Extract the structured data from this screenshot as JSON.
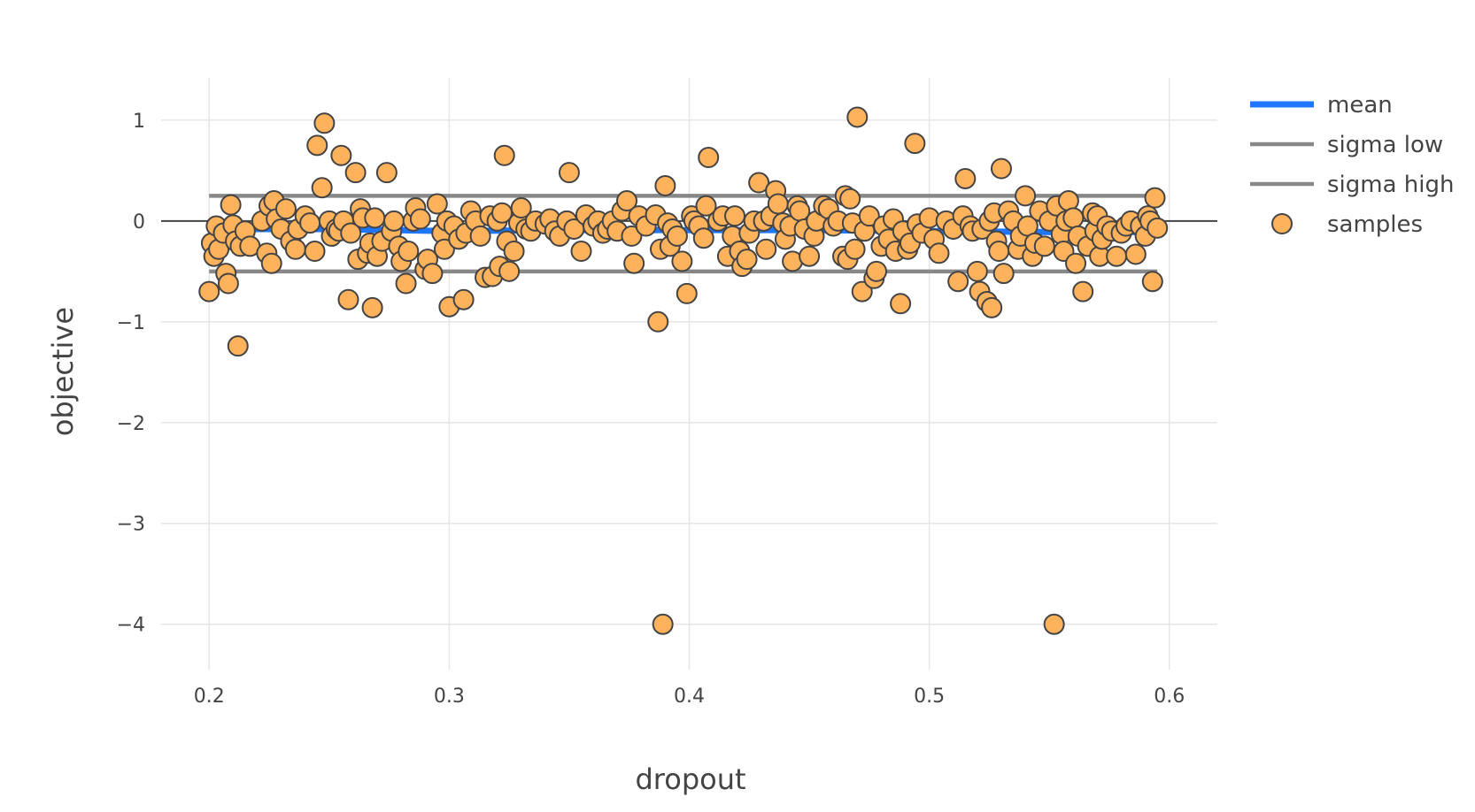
{
  "chart_data": {
    "type": "scatter",
    "title": "",
    "xlabel": "dropout",
    "ylabel": "objective",
    "xlim": [
      0.18,
      0.62
    ],
    "ylim": [
      -4.45,
      1.42
    ],
    "x_ticks": [
      0.2,
      0.3,
      0.4,
      0.5,
      0.6
    ],
    "x_tick_labels": [
      "0.2",
      "0.3",
      "0.4",
      "0.5",
      "0.6"
    ],
    "y_ticks": [
      1,
      0,
      -1,
      -2,
      -3,
      -4
    ],
    "y_tick_labels": [
      "1",
      "0",
      "−1",
      "−2",
      "−3",
      "−4"
    ],
    "grid": true,
    "zero_line": true,
    "legend_position": "top-right",
    "colors": {
      "mean": "#1f77ff",
      "sigma": "#888888",
      "marker_fill": "#ffb25c",
      "marker_edge": "#444444",
      "grid": "#e6e6e6",
      "zero_line": "#444444"
    },
    "series": [
      {
        "name": "mean",
        "kind": "line",
        "x": [
          0.2,
          0.25,
          0.3,
          0.35,
          0.4,
          0.45,
          0.5,
          0.55,
          0.595
        ],
        "y": [
          -0.08,
          -0.08,
          -0.1,
          -0.09,
          -0.09,
          -0.09,
          -0.1,
          -0.11,
          -0.11
        ]
      },
      {
        "name": "sigma low",
        "kind": "line",
        "x": [
          0.2,
          0.595
        ],
        "y": [
          -0.5,
          -0.5
        ]
      },
      {
        "name": "sigma high",
        "kind": "line",
        "x": [
          0.2,
          0.595
        ],
        "y": [
          0.25,
          0.25
        ]
      },
      {
        "name": "samples",
        "kind": "markers",
        "points": [
          [
            0.2,
            -0.7
          ],
          [
            0.201,
            -0.22
          ],
          [
            0.202,
            -0.35
          ],
          [
            0.203,
            -0.05
          ],
          [
            0.204,
            -0.28
          ],
          [
            0.206,
            -0.12
          ],
          [
            0.207,
            -0.52
          ],
          [
            0.208,
            -0.62
          ],
          [
            0.209,
            0.16
          ],
          [
            0.21,
            -0.04
          ],
          [
            0.211,
            -0.2
          ],
          [
            0.212,
            -1.24
          ],
          [
            0.213,
            -0.25
          ],
          [
            0.215,
            -0.1
          ],
          [
            0.217,
            -0.25
          ],
          [
            0.222,
            0.0
          ],
          [
            0.224,
            -0.32
          ],
          [
            0.225,
            0.15
          ],
          [
            0.226,
            -0.42
          ],
          [
            0.227,
            0.2
          ],
          [
            0.228,
            0.02
          ],
          [
            0.23,
            -0.08
          ],
          [
            0.232,
            0.12
          ],
          [
            0.234,
            -0.2
          ],
          [
            0.236,
            -0.28
          ],
          [
            0.237,
            -0.08
          ],
          [
            0.24,
            0.05
          ],
          [
            0.242,
            -0.02
          ],
          [
            0.244,
            -0.3
          ],
          [
            0.245,
            0.75
          ],
          [
            0.247,
            0.33
          ],
          [
            0.248,
            0.97
          ],
          [
            0.25,
            0.0
          ],
          [
            0.251,
            -0.15
          ],
          [
            0.253,
            -0.08
          ],
          [
            0.254,
            -0.1
          ],
          [
            0.255,
            0.65
          ],
          [
            0.256,
            0.0
          ],
          [
            0.258,
            -0.78
          ],
          [
            0.259,
            -0.12
          ],
          [
            0.261,
            0.48
          ],
          [
            0.262,
            -0.38
          ],
          [
            0.263,
            0.12
          ],
          [
            0.264,
            0.03
          ],
          [
            0.266,
            -0.32
          ],
          [
            0.267,
            -0.22
          ],
          [
            0.268,
            -0.86
          ],
          [
            0.269,
            0.03
          ],
          [
            0.27,
            -0.35
          ],
          [
            0.272,
            -0.2
          ],
          [
            0.274,
            0.48
          ],
          [
            0.276,
            -0.1
          ],
          [
            0.277,
            0.0
          ],
          [
            0.279,
            -0.25
          ],
          [
            0.28,
            -0.4
          ],
          [
            0.282,
            -0.62
          ],
          [
            0.283,
            -0.3
          ],
          [
            0.285,
            0.0
          ],
          [
            0.286,
            0.13
          ],
          [
            0.288,
            0.02
          ],
          [
            0.29,
            -0.48
          ],
          [
            0.291,
            -0.38
          ],
          [
            0.293,
            -0.52
          ],
          [
            0.295,
            0.17
          ],
          [
            0.297,
            -0.12
          ],
          [
            0.298,
            -0.28
          ],
          [
            0.299,
            0.0
          ],
          [
            0.3,
            -0.85
          ],
          [
            0.302,
            -0.05
          ],
          [
            0.304,
            -0.18
          ],
          [
            0.306,
            -0.78
          ],
          [
            0.307,
            -0.12
          ],
          [
            0.309,
            0.1
          ],
          [
            0.311,
            0.0
          ],
          [
            0.313,
            -0.15
          ],
          [
            0.315,
            -0.56
          ],
          [
            0.317,
            0.05
          ],
          [
            0.318,
            -0.55
          ],
          [
            0.32,
            0.0
          ],
          [
            0.321,
            -0.45
          ],
          [
            0.322,
            0.08
          ],
          [
            0.323,
            0.65
          ],
          [
            0.324,
            -0.2
          ],
          [
            0.325,
            -0.5
          ],
          [
            0.327,
            -0.3
          ],
          [
            0.329,
            -0.02
          ],
          [
            0.33,
            0.13
          ],
          [
            0.332,
            -0.08
          ],
          [
            0.334,
            -0.1
          ],
          [
            0.336,
            0.0
          ],
          [
            0.34,
            -0.03
          ],
          [
            0.342,
            0.02
          ],
          [
            0.344,
            -0.1
          ],
          [
            0.346,
            -0.15
          ],
          [
            0.349,
            0.0
          ],
          [
            0.35,
            0.48
          ],
          [
            0.352,
            -0.08
          ],
          [
            0.355,
            -0.3
          ],
          [
            0.357,
            0.06
          ],
          [
            0.36,
            -0.05
          ],
          [
            0.362,
            0.0
          ],
          [
            0.364,
            -0.12
          ],
          [
            0.366,
            -0.08
          ],
          [
            0.368,
            0.0
          ],
          [
            0.37,
            -0.1
          ],
          [
            0.372,
            0.1
          ],
          [
            0.374,
            0.2
          ],
          [
            0.376,
            -0.15
          ],
          [
            0.377,
            -0.42
          ],
          [
            0.379,
            0.05
          ],
          [
            0.382,
            -0.05
          ],
          [
            0.386,
            0.06
          ],
          [
            0.387,
            -1.0
          ],
          [
            0.388,
            -0.28
          ],
          [
            0.389,
            -4.0
          ],
          [
            0.39,
            0.35
          ],
          [
            0.391,
            -0.02
          ],
          [
            0.392,
            -0.25
          ],
          [
            0.393,
            -0.08
          ],
          [
            0.395,
            -0.15
          ],
          [
            0.397,
            -0.4
          ],
          [
            0.399,
            -0.72
          ],
          [
            0.401,
            0.05
          ],
          [
            0.402,
            0.0
          ],
          [
            0.404,
            -0.05
          ],
          [
            0.406,
            -0.17
          ],
          [
            0.407,
            0.15
          ],
          [
            0.408,
            0.63
          ],
          [
            0.412,
            0.0
          ],
          [
            0.414,
            0.05
          ],
          [
            0.416,
            -0.35
          ],
          [
            0.418,
            -0.15
          ],
          [
            0.419,
            0.05
          ],
          [
            0.421,
            -0.3
          ],
          [
            0.422,
            -0.45
          ],
          [
            0.424,
            -0.38
          ],
          [
            0.425,
            -0.12
          ],
          [
            0.427,
            0.0
          ],
          [
            0.429,
            0.38
          ],
          [
            0.431,
            0.0
          ],
          [
            0.432,
            -0.28
          ],
          [
            0.434,
            0.05
          ],
          [
            0.436,
            0.3
          ],
          [
            0.437,
            0.17
          ],
          [
            0.439,
            -0.02
          ],
          [
            0.44,
            -0.18
          ],
          [
            0.442,
            -0.05
          ],
          [
            0.443,
            -0.4
          ],
          [
            0.445,
            0.15
          ],
          [
            0.446,
            0.1
          ],
          [
            0.448,
            -0.08
          ],
          [
            0.45,
            -0.35
          ],
          [
            0.452,
            -0.15
          ],
          [
            0.453,
            0.0
          ],
          [
            0.456,
            0.15
          ],
          [
            0.458,
            0.12
          ],
          [
            0.46,
            -0.05
          ],
          [
            0.462,
            0.0
          ],
          [
            0.464,
            -0.35
          ],
          [
            0.465,
            0.25
          ],
          [
            0.466,
            -0.38
          ],
          [
            0.467,
            0.22
          ],
          [
            0.468,
            -0.02
          ],
          [
            0.469,
            -0.28
          ],
          [
            0.47,
            1.03
          ],
          [
            0.472,
            -0.7
          ],
          [
            0.473,
            -0.1
          ],
          [
            0.475,
            0.05
          ],
          [
            0.477,
            -0.57
          ],
          [
            0.478,
            -0.5
          ],
          [
            0.48,
            -0.25
          ],
          [
            0.481,
            -0.05
          ],
          [
            0.483,
            -0.18
          ],
          [
            0.485,
            0.02
          ],
          [
            0.486,
            -0.3
          ],
          [
            0.488,
            -0.82
          ],
          [
            0.489,
            -0.1
          ],
          [
            0.491,
            -0.28
          ],
          [
            0.492,
            -0.22
          ],
          [
            0.494,
            0.77
          ],
          [
            0.495,
            -0.03
          ],
          [
            0.497,
            -0.12
          ],
          [
            0.5,
            0.03
          ],
          [
            0.502,
            -0.18
          ],
          [
            0.504,
            -0.32
          ],
          [
            0.507,
            0.0
          ],
          [
            0.51,
            -0.08
          ],
          [
            0.512,
            -0.6
          ],
          [
            0.514,
            0.05
          ],
          [
            0.515,
            0.42
          ],
          [
            0.517,
            -0.05
          ],
          [
            0.518,
            -0.1
          ],
          [
            0.52,
            -0.5
          ],
          [
            0.521,
            -0.7
          ],
          [
            0.522,
            -0.08
          ],
          [
            0.524,
            -0.8
          ],
          [
            0.525,
            0.0
          ],
          [
            0.526,
            -0.86
          ],
          [
            0.527,
            0.08
          ],
          [
            0.528,
            -0.2
          ],
          [
            0.529,
            -0.3
          ],
          [
            0.53,
            0.52
          ],
          [
            0.531,
            -0.52
          ],
          [
            0.533,
            0.1
          ],
          [
            0.535,
            0.0
          ],
          [
            0.537,
            -0.28
          ],
          [
            0.538,
            -0.15
          ],
          [
            0.54,
            0.25
          ],
          [
            0.541,
            -0.05
          ],
          [
            0.543,
            -0.35
          ],
          [
            0.544,
            -0.22
          ],
          [
            0.546,
            0.1
          ],
          [
            0.548,
            -0.25
          ],
          [
            0.55,
            0.0
          ],
          [
            0.552,
            -4.0
          ],
          [
            0.553,
            0.15
          ],
          [
            0.555,
            -0.13
          ],
          [
            0.556,
            -0.3
          ],
          [
            0.557,
            0.0
          ],
          [
            0.558,
            0.2
          ],
          [
            0.56,
            0.03
          ],
          [
            0.561,
            -0.42
          ],
          [
            0.562,
            -0.15
          ],
          [
            0.564,
            -0.7
          ],
          [
            0.566,
            -0.25
          ],
          [
            0.568,
            0.08
          ],
          [
            0.569,
            -0.1
          ],
          [
            0.57,
            0.05
          ],
          [
            0.571,
            -0.35
          ],
          [
            0.572,
            -0.18
          ],
          [
            0.574,
            -0.05
          ],
          [
            0.576,
            -0.1
          ],
          [
            0.578,
            -0.35
          ],
          [
            0.58,
            -0.12
          ],
          [
            0.582,
            -0.05
          ],
          [
            0.584,
            0.0
          ],
          [
            0.586,
            -0.33
          ],
          [
            0.588,
            -0.05
          ],
          [
            0.59,
            -0.15
          ],
          [
            0.591,
            0.05
          ],
          [
            0.592,
            0.0
          ],
          [
            0.593,
            -0.6
          ],
          [
            0.594,
            0.23
          ],
          [
            0.595,
            -0.07
          ]
        ]
      }
    ]
  }
}
